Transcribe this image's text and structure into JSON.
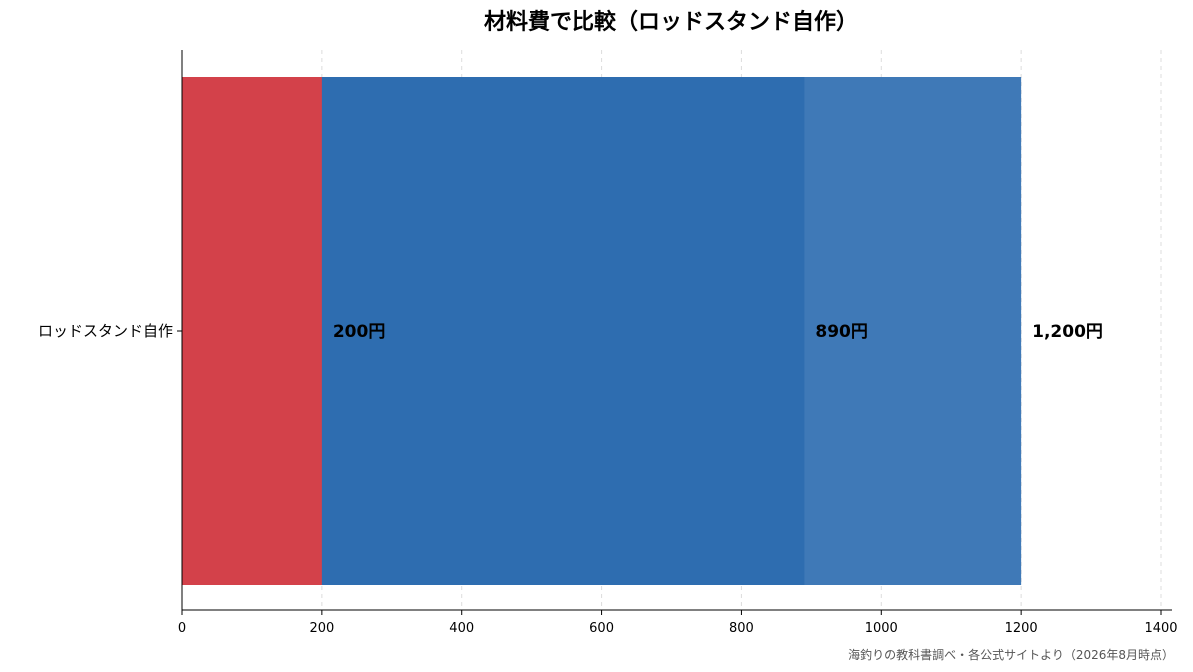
{
  "chart_data": {
    "type": "bar",
    "orientation": "horizontal",
    "title": "材料費で比較（ロッドスタンド自作）",
    "categories": [
      "ロッドスタンド自作"
    ],
    "series": [
      {
        "values": [
          1200
        ],
        "color": "#3f79b7",
        "label": "1,200円"
      },
      {
        "values": [
          890
        ],
        "color": "#2e6db0",
        "label": "890円"
      },
      {
        "values": [
          200
        ],
        "color": "#d3414a",
        "label": "200円"
      }
    ],
    "xlim": [
      0,
      1400
    ],
    "xticks": [
      0,
      200,
      400,
      600,
      800,
      1000,
      1200,
      1400
    ],
    "xtick_labels": [
      "0",
      "200",
      "400",
      "600",
      "800",
      "1000",
      "1200",
      "1400"
    ],
    "xlabel": "",
    "ylabel": "",
    "grid": "vertical-dashed",
    "legend": "none"
  },
  "source_note": "海釣りの教科書調べ・各公式サイトより（2026年8月時点）"
}
